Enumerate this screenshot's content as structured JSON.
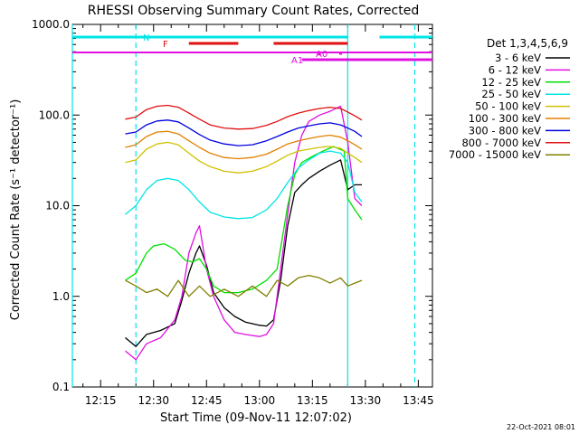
{
  "chart_data": {
    "type": "line",
    "title": "RHESSI Observing Summary Count Rates, Corrected",
    "xlabel": "Start Time (09-Nov-11 12:07:02)",
    "ylabel": "Corrected Count Rate (s⁻¹ detector⁻¹)",
    "y_scale": "log",
    "ylim": [
      0.1,
      1000
    ],
    "xlim": [
      "12:07",
      "13:49"
    ],
    "x_tick_labels": [
      "12:15",
      "12:30",
      "12:45",
      "13:00",
      "13:15",
      "13:30",
      "13:45"
    ],
    "y_tick_labels": [
      "0.1",
      "1.0",
      "10.0",
      "100.0",
      "1000.0"
    ],
    "legend_title": "Det 1,3,4,5,6,9",
    "legend_position": "right",
    "timestamp": "22-Oct-2021 08:01",
    "flags": [
      {
        "label": "N",
        "color": "#00e5e5",
        "segments": [
          [
            "12:07",
            "13:25"
          ],
          [
            "13:34",
            "13:49"
          ]
        ]
      },
      {
        "label": "F",
        "color": "#e01010",
        "segments": [
          [
            "12:40",
            "12:54"
          ],
          [
            "13:04",
            "13:25"
          ]
        ]
      },
      {
        "label": "A0",
        "color": "#e010e0",
        "segments": [
          [
            "13:17",
            "13:17"
          ],
          [
            "13:23",
            "13:23"
          ]
        ]
      },
      {
        "label": "A1",
        "color": "#e010e0",
        "segments": [
          [
            "13:12",
            "13:49"
          ]
        ]
      }
    ],
    "flag_line": {
      "color": "#e010e0",
      "segment": [
        "12:07",
        "13:49"
      ]
    },
    "vlines": [
      {
        "time": "12:07",
        "color": "#00e5e5",
        "style": "solid"
      },
      {
        "time": "12:25",
        "color": "#00e5e5",
        "style": "dashed"
      },
      {
        "time": "13:25",
        "color": "#00e5e5",
        "style": "solid"
      },
      {
        "time": "13:44",
        "color": "#00e5e5",
        "style": "dashed"
      }
    ],
    "series": [
      {
        "name": "3 - 6 keV",
        "color": "#000000",
        "points": [
          [
            "12:22",
            0.35
          ],
          [
            "12:25",
            0.28
          ],
          [
            "12:28",
            0.38
          ],
          [
            "12:32",
            0.42
          ],
          [
            "12:36",
            0.5
          ],
          [
            "12:38",
            0.9
          ],
          [
            "12:40",
            1.8
          ],
          [
            "12:42",
            3.0
          ],
          [
            "12:43",
            3.6
          ],
          [
            "12:45",
            2.2
          ],
          [
            "12:47",
            1.1
          ],
          [
            "12:50",
            0.75
          ],
          [
            "12:53",
            0.6
          ],
          [
            "12:56",
            0.52
          ],
          [
            "13:00",
            0.48
          ],
          [
            "13:02",
            0.47
          ],
          [
            "13:04",
            0.55
          ],
          [
            "13:06",
            1.5
          ],
          [
            "13:08",
            6.0
          ],
          [
            "13:10",
            14
          ],
          [
            "13:12",
            17
          ],
          [
            "13:14",
            20
          ],
          [
            "13:17",
            24
          ],
          [
            "13:20",
            28
          ],
          [
            "13:23",
            32
          ],
          [
            "13:25",
            15
          ],
          [
            "13:27",
            17
          ],
          [
            "13:29",
            17
          ]
        ]
      },
      {
        "name": "6 - 12 keV",
        "color": "#e010e0",
        "points": [
          [
            "12:22",
            0.25
          ],
          [
            "12:25",
            0.2
          ],
          [
            "12:28",
            0.3
          ],
          [
            "12:32",
            0.35
          ],
          [
            "12:36",
            0.55
          ],
          [
            "12:38",
            1.0
          ],
          [
            "12:40",
            3.0
          ],
          [
            "12:42",
            5.0
          ],
          [
            "12:43",
            6.0
          ],
          [
            "12:45",
            2.0
          ],
          [
            "12:47",
            1.0
          ],
          [
            "12:50",
            0.55
          ],
          [
            "12:53",
            0.4
          ],
          [
            "12:56",
            0.38
          ],
          [
            "13:00",
            0.36
          ],
          [
            "13:02",
            0.38
          ],
          [
            "13:04",
            0.5
          ],
          [
            "13:06",
            2.0
          ],
          [
            "13:08",
            8.0
          ],
          [
            "13:10",
            30
          ],
          [
            "13:12",
            60
          ],
          [
            "13:14",
            85
          ],
          [
            "13:17",
            100
          ],
          [
            "13:20",
            110
          ],
          [
            "13:23",
            125
          ],
          [
            "13:25",
            50
          ],
          [
            "13:27",
            12
          ],
          [
            "13:29",
            10
          ]
        ]
      },
      {
        "name": "12 - 25 keV",
        "color": "#00e000",
        "points": [
          [
            "12:22",
            1.5
          ],
          [
            "12:25",
            1.8
          ],
          [
            "12:28",
            3.0
          ],
          [
            "12:30",
            3.6
          ],
          [
            "12:33",
            3.8
          ],
          [
            "12:36",
            3.3
          ],
          [
            "12:39",
            2.5
          ],
          [
            "12:41",
            2.4
          ],
          [
            "12:43",
            2.6
          ],
          [
            "12:45",
            2.0
          ],
          [
            "12:47",
            1.3
          ],
          [
            "12:50",
            1.1
          ],
          [
            "12:54",
            1.1
          ],
          [
            "12:58",
            1.2
          ],
          [
            "13:02",
            1.5
          ],
          [
            "13:05",
            2.0
          ],
          [
            "13:08",
            10
          ],
          [
            "13:10",
            22
          ],
          [
            "13:12",
            30
          ],
          [
            "13:15",
            35
          ],
          [
            "13:18",
            40
          ],
          [
            "13:21",
            45
          ],
          [
            "13:24",
            40
          ],
          [
            "13:25",
            12
          ],
          [
            "13:27",
            9
          ],
          [
            "13:29",
            7
          ]
        ]
      },
      {
        "name": "25 - 50 keV",
        "color": "#00e5e5",
        "points": [
          [
            "12:22",
            8
          ],
          [
            "12:25",
            10
          ],
          [
            "12:28",
            15
          ],
          [
            "12:31",
            19
          ],
          [
            "12:34",
            20
          ],
          [
            "12:37",
            19
          ],
          [
            "12:40",
            15
          ],
          [
            "12:43",
            11
          ],
          [
            "12:46",
            8.5
          ],
          [
            "12:50",
            7.5
          ],
          [
            "12:54",
            7.2
          ],
          [
            "12:58",
            7.4
          ],
          [
            "13:02",
            9
          ],
          [
            "13:05",
            12
          ],
          [
            "13:08",
            18
          ],
          [
            "13:11",
            26
          ],
          [
            "13:14",
            32
          ],
          [
            "13:17",
            38
          ],
          [
            "13:20",
            40
          ],
          [
            "13:23",
            38
          ],
          [
            "13:25",
            30
          ],
          [
            "13:27",
            14
          ],
          [
            "13:29",
            11
          ]
        ]
      },
      {
        "name": "50 - 100 keV",
        "color": "#d0c000",
        "points": [
          [
            "12:22",
            30
          ],
          [
            "12:25",
            32
          ],
          [
            "12:28",
            42
          ],
          [
            "12:31",
            48
          ],
          [
            "12:34",
            50
          ],
          [
            "12:37",
            47
          ],
          [
            "12:40",
            38
          ],
          [
            "12:43",
            31
          ],
          [
            "12:46",
            27
          ],
          [
            "12:50",
            24
          ],
          [
            "12:54",
            23
          ],
          [
            "12:58",
            24
          ],
          [
            "13:02",
            27
          ],
          [
            "13:05",
            31
          ],
          [
            "13:08",
            36
          ],
          [
            "13:11",
            40
          ],
          [
            "13:14",
            42
          ],
          [
            "13:17",
            44
          ],
          [
            "13:20",
            45
          ],
          [
            "13:23",
            43
          ],
          [
            "13:25",
            38
          ],
          [
            "13:27",
            34
          ],
          [
            "13:29",
            30
          ]
        ]
      },
      {
        "name": "100 - 300 keV",
        "color": "#e08000",
        "points": [
          [
            "12:22",
            44
          ],
          [
            "12:25",
            47
          ],
          [
            "12:28",
            58
          ],
          [
            "12:31",
            65
          ],
          [
            "12:34",
            66
          ],
          [
            "12:37",
            62
          ],
          [
            "12:40",
            52
          ],
          [
            "12:43",
            44
          ],
          [
            "12:46",
            38
          ],
          [
            "12:50",
            34
          ],
          [
            "12:54",
            33
          ],
          [
            "12:58",
            34
          ],
          [
            "13:02",
            37
          ],
          [
            "13:05",
            42
          ],
          [
            "13:08",
            48
          ],
          [
            "13:11",
            52
          ],
          [
            "13:14",
            55
          ],
          [
            "13:17",
            58
          ],
          [
            "13:20",
            60
          ],
          [
            "13:23",
            57
          ],
          [
            "13:25",
            52
          ],
          [
            "13:27",
            47
          ],
          [
            "13:29",
            42
          ]
        ]
      },
      {
        "name": "300 - 800 keV",
        "color": "#0000e0",
        "points": [
          [
            "12:22",
            62
          ],
          [
            "12:25",
            65
          ],
          [
            "12:28",
            78
          ],
          [
            "12:31",
            86
          ],
          [
            "12:34",
            88
          ],
          [
            "12:37",
            84
          ],
          [
            "12:40",
            72
          ],
          [
            "12:43",
            61
          ],
          [
            "12:46",
            53
          ],
          [
            "12:50",
            48
          ],
          [
            "12:54",
            46
          ],
          [
            "12:58",
            47
          ],
          [
            "13:02",
            52
          ],
          [
            "13:05",
            58
          ],
          [
            "13:08",
            65
          ],
          [
            "13:11",
            72
          ],
          [
            "13:14",
            76
          ],
          [
            "13:17",
            80
          ],
          [
            "13:20",
            82
          ],
          [
            "13:23",
            78
          ],
          [
            "13:25",
            72
          ],
          [
            "13:27",
            66
          ],
          [
            "13:29",
            58
          ]
        ]
      },
      {
        "name": "800 - 7000 keV",
        "color": "#e01010",
        "points": [
          [
            "12:22",
            90
          ],
          [
            "12:25",
            95
          ],
          [
            "12:28",
            115
          ],
          [
            "12:31",
            125
          ],
          [
            "12:34",
            128
          ],
          [
            "12:37",
            122
          ],
          [
            "12:40",
            105
          ],
          [
            "12:43",
            90
          ],
          [
            "12:46",
            78
          ],
          [
            "12:50",
            72
          ],
          [
            "12:54",
            70
          ],
          [
            "12:58",
            71
          ],
          [
            "13:02",
            77
          ],
          [
            "13:05",
            85
          ],
          [
            "13:08",
            96
          ],
          [
            "13:11",
            105
          ],
          [
            "13:14",
            112
          ],
          [
            "13:17",
            118
          ],
          [
            "13:20",
            122
          ],
          [
            "13:23",
            118
          ],
          [
            "13:25",
            108
          ],
          [
            "13:27",
            98
          ],
          [
            "13:29",
            88
          ]
        ]
      },
      {
        "name": "7000 - 15000 keV",
        "color": "#808000",
        "points": [
          [
            "12:22",
            1.5
          ],
          [
            "12:25",
            1.3
          ],
          [
            "12:28",
            1.1
          ],
          [
            "12:31",
            1.2
          ],
          [
            "12:34",
            1.0
          ],
          [
            "12:37",
            1.5
          ],
          [
            "12:40",
            1.0
          ],
          [
            "12:43",
            1.3
          ],
          [
            "12:46",
            1.0
          ],
          [
            "12:50",
            1.2
          ],
          [
            "12:54",
            1.0
          ],
          [
            "12:58",
            1.3
          ],
          [
            "13:02",
            1.0
          ],
          [
            "13:05",
            1.5
          ],
          [
            "13:08",
            1.3
          ],
          [
            "13:11",
            1.6
          ],
          [
            "13:14",
            1.7
          ],
          [
            "13:17",
            1.6
          ],
          [
            "13:20",
            1.4
          ],
          [
            "13:23",
            1.6
          ],
          [
            "13:25",
            1.3
          ],
          [
            "13:27",
            1.4
          ],
          [
            "13:29",
            1.5
          ]
        ]
      }
    ]
  }
}
